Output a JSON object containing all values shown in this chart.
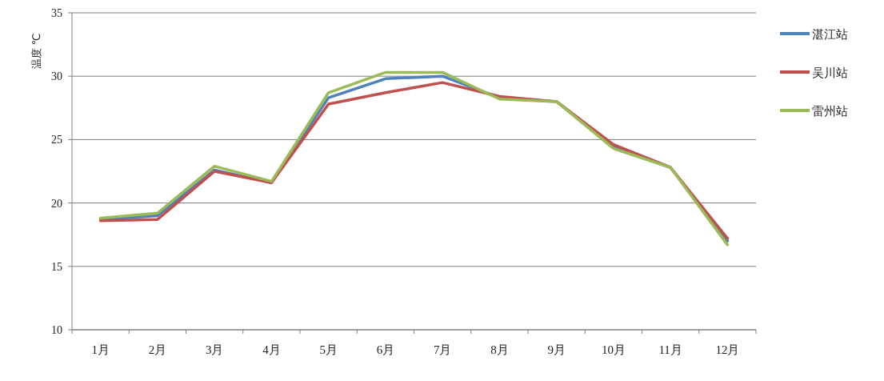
{
  "chart_data": {
    "type": "line",
    "ylabel": "温度 ℃",
    "categories": [
      "1月",
      "2月",
      "3月",
      "4月",
      "5月",
      "6月",
      "7月",
      "8月",
      "9月",
      "10月",
      "11月",
      "12月"
    ],
    "series": [
      {
        "name": "湛江站",
        "color": "#4f81bd",
        "values": [
          18.7,
          19.0,
          22.6,
          21.6,
          28.3,
          29.8,
          30.0,
          28.3,
          28.0,
          24.5,
          22.8,
          17.0
        ]
      },
      {
        "name": "吴川站",
        "color": "#c0504d",
        "values": [
          18.6,
          18.7,
          22.5,
          21.6,
          27.8,
          28.7,
          29.5,
          28.4,
          28.0,
          24.6,
          22.8,
          17.2
        ]
      },
      {
        "name": "雷州站",
        "color": "#9bbb59",
        "values": [
          18.8,
          19.2,
          22.9,
          21.7,
          28.7,
          30.3,
          30.3,
          28.2,
          28.0,
          24.3,
          22.8,
          16.7
        ]
      }
    ],
    "ylim": [
      10,
      35
    ],
    "yticks": [
      10,
      15,
      20,
      25,
      30,
      35
    ],
    "grid": "y",
    "legend": "top right",
    "marker": "none",
    "line_style": "solid"
  }
}
